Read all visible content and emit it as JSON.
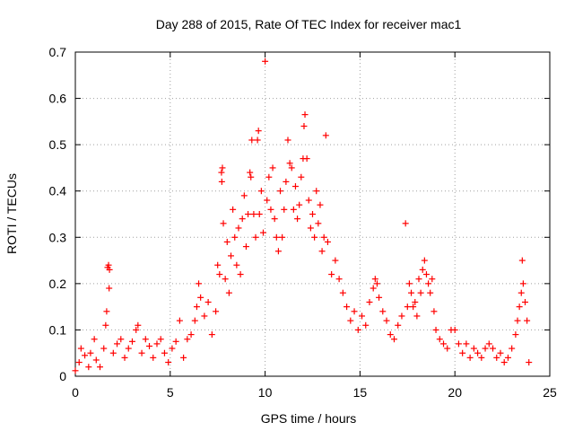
{
  "chart_data": {
    "type": "scatter",
    "title": "Day 288 of 2015, Rate Of TEC Index for receiver mac1",
    "xlabel": "GPS time / hours",
    "ylabel": "ROTI / TECUs",
    "xlim": [
      0,
      25
    ],
    "ylim": [
      0,
      0.7
    ],
    "x_ticks": [
      "0",
      "5",
      "10",
      "15",
      "20",
      "25"
    ],
    "y_ticks": [
      "0",
      "0.1",
      "0.2",
      "0.3",
      "0.4",
      "0.5",
      "0.6",
      "0.7"
    ],
    "grid": true,
    "marker": "+",
    "color": "#ff0000",
    "series": [
      {
        "points": [
          [
            0.0,
            0.012
          ],
          [
            0.2,
            0.03
          ],
          [
            0.3,
            0.06
          ],
          [
            0.5,
            0.045
          ],
          [
            0.7,
            0.02
          ],
          [
            0.8,
            0.05
          ],
          [
            1.0,
            0.08
          ],
          [
            1.1,
            0.035
          ],
          [
            1.3,
            0.02
          ],
          [
            1.5,
            0.06
          ],
          [
            1.6,
            0.11
          ],
          [
            1.65,
            0.14
          ],
          [
            1.7,
            0.235
          ],
          [
            1.75,
            0.24
          ],
          [
            1.78,
            0.19
          ],
          [
            1.8,
            0.23
          ],
          [
            2.0,
            0.05
          ],
          [
            2.2,
            0.07
          ],
          [
            2.4,
            0.08
          ],
          [
            2.6,
            0.04
          ],
          [
            2.8,
            0.06
          ],
          [
            3.0,
            0.075
          ],
          [
            3.2,
            0.1
          ],
          [
            3.3,
            0.11
          ],
          [
            3.5,
            0.05
          ],
          [
            3.7,
            0.08
          ],
          [
            3.9,
            0.065
          ],
          [
            4.1,
            0.04
          ],
          [
            4.3,
            0.07
          ],
          [
            4.5,
            0.08
          ],
          [
            4.7,
            0.05
          ],
          [
            4.9,
            0.03
          ],
          [
            5.1,
            0.06
          ],
          [
            5.3,
            0.075
          ],
          [
            5.5,
            0.12
          ],
          [
            5.7,
            0.04
          ],
          [
            5.9,
            0.08
          ],
          [
            6.1,
            0.09
          ],
          [
            6.3,
            0.12
          ],
          [
            6.4,
            0.15
          ],
          [
            6.5,
            0.2
          ],
          [
            6.6,
            0.17
          ],
          [
            6.8,
            0.13
          ],
          [
            7.0,
            0.16
          ],
          [
            7.2,
            0.09
          ],
          [
            7.4,
            0.14
          ],
          [
            7.5,
            0.24
          ],
          [
            7.6,
            0.22
          ],
          [
            7.7,
            0.44
          ],
          [
            7.75,
            0.45
          ],
          [
            7.72,
            0.42
          ],
          [
            7.8,
            0.33
          ],
          [
            7.9,
            0.21
          ],
          [
            8.0,
            0.29
          ],
          [
            8.1,
            0.18
          ],
          [
            8.2,
            0.26
          ],
          [
            8.3,
            0.36
          ],
          [
            8.4,
            0.3
          ],
          [
            8.5,
            0.24
          ],
          [
            8.6,
            0.32
          ],
          [
            8.7,
            0.22
          ],
          [
            8.8,
            0.34
          ],
          [
            8.9,
            0.39
          ],
          [
            9.0,
            0.28
          ],
          [
            9.1,
            0.35
          ],
          [
            9.2,
            0.44
          ],
          [
            9.25,
            0.43
          ],
          [
            9.3,
            0.51
          ],
          [
            9.4,
            0.35
          ],
          [
            9.5,
            0.3
          ],
          [
            9.6,
            0.51
          ],
          [
            9.65,
            0.53
          ],
          [
            9.7,
            0.35
          ],
          [
            9.8,
            0.4
          ],
          [
            9.9,
            0.31
          ],
          [
            10.0,
            0.68
          ],
          [
            10.1,
            0.38
          ],
          [
            10.2,
            0.43
          ],
          [
            10.3,
            0.36
          ],
          [
            10.4,
            0.45
          ],
          [
            10.5,
            0.34
          ],
          [
            10.6,
            0.3
          ],
          [
            10.7,
            0.27
          ],
          [
            10.8,
            0.4
          ],
          [
            10.9,
            0.3
          ],
          [
            11.0,
            0.36
          ],
          [
            11.1,
            0.42
          ],
          [
            11.2,
            0.51
          ],
          [
            11.3,
            0.46
          ],
          [
            11.4,
            0.45
          ],
          [
            11.5,
            0.36
          ],
          [
            11.6,
            0.41
          ],
          [
            11.7,
            0.34
          ],
          [
            11.8,
            0.37
          ],
          [
            11.9,
            0.43
          ],
          [
            12.0,
            0.47
          ],
          [
            12.05,
            0.54
          ],
          [
            12.1,
            0.565
          ],
          [
            12.2,
            0.47
          ],
          [
            12.3,
            0.38
          ],
          [
            12.4,
            0.32
          ],
          [
            12.5,
            0.35
          ],
          [
            12.6,
            0.3
          ],
          [
            12.7,
            0.4
          ],
          [
            12.8,
            0.33
          ],
          [
            12.9,
            0.37
          ],
          [
            13.0,
            0.27
          ],
          [
            13.1,
            0.3
          ],
          [
            13.2,
            0.52
          ],
          [
            13.3,
            0.29
          ],
          [
            13.5,
            0.22
          ],
          [
            13.7,
            0.25
          ],
          [
            13.9,
            0.21
          ],
          [
            14.1,
            0.18
          ],
          [
            14.3,
            0.15
          ],
          [
            14.5,
            0.12
          ],
          [
            14.7,
            0.14
          ],
          [
            14.9,
            0.1
          ],
          [
            15.1,
            0.13
          ],
          [
            15.3,
            0.11
          ],
          [
            15.5,
            0.16
          ],
          [
            15.7,
            0.19
          ],
          [
            15.8,
            0.21
          ],
          [
            15.9,
            0.2
          ],
          [
            16.0,
            0.17
          ],
          [
            16.2,
            0.14
          ],
          [
            16.4,
            0.12
          ],
          [
            16.6,
            0.09
          ],
          [
            16.8,
            0.08
          ],
          [
            17.0,
            0.11
          ],
          [
            17.2,
            0.13
          ],
          [
            17.4,
            0.33
          ],
          [
            17.5,
            0.15
          ],
          [
            17.6,
            0.2
          ],
          [
            17.7,
            0.18
          ],
          [
            17.8,
            0.15
          ],
          [
            17.9,
            0.16
          ],
          [
            18.0,
            0.13
          ],
          [
            18.1,
            0.21
          ],
          [
            18.2,
            0.18
          ],
          [
            18.3,
            0.23
          ],
          [
            18.4,
            0.25
          ],
          [
            18.5,
            0.22
          ],
          [
            18.6,
            0.2
          ],
          [
            18.7,
            0.18
          ],
          [
            18.8,
            0.21
          ],
          [
            18.9,
            0.14
          ],
          [
            19.0,
            0.1
          ],
          [
            19.2,
            0.08
          ],
          [
            19.4,
            0.07
          ],
          [
            19.6,
            0.06
          ],
          [
            19.8,
            0.1
          ],
          [
            20.0,
            0.1
          ],
          [
            20.2,
            0.07
          ],
          [
            20.4,
            0.05
          ],
          [
            20.6,
            0.07
          ],
          [
            20.8,
            0.04
          ],
          [
            21.0,
            0.06
          ],
          [
            21.2,
            0.05
          ],
          [
            21.4,
            0.04
          ],
          [
            21.6,
            0.06
          ],
          [
            21.8,
            0.07
          ],
          [
            22.0,
            0.06
          ],
          [
            22.2,
            0.04
          ],
          [
            22.4,
            0.05
          ],
          [
            22.6,
            0.03
          ],
          [
            22.8,
            0.04
          ],
          [
            23.0,
            0.06
          ],
          [
            23.2,
            0.09
          ],
          [
            23.3,
            0.12
          ],
          [
            23.4,
            0.15
          ],
          [
            23.5,
            0.18
          ],
          [
            23.55,
            0.25
          ],
          [
            23.6,
            0.2
          ],
          [
            23.7,
            0.16
          ],
          [
            23.8,
            0.12
          ],
          [
            23.9,
            0.03
          ]
        ]
      }
    ]
  }
}
